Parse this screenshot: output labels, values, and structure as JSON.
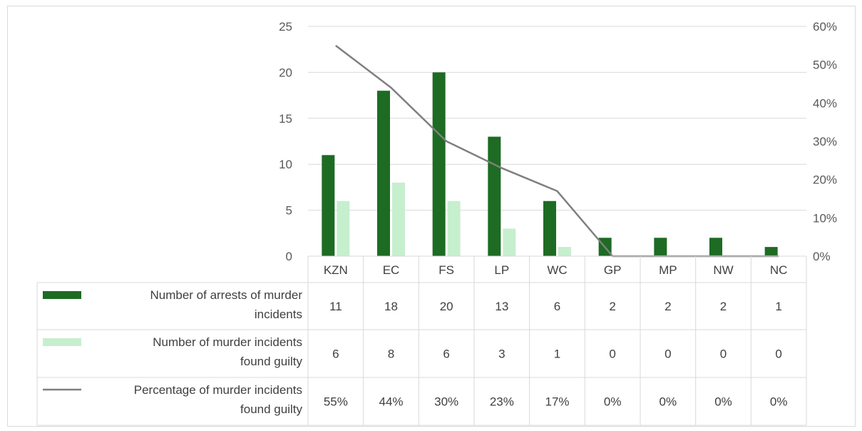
{
  "chart_data": {
    "type": "bar",
    "title": "",
    "xlabel": "",
    "ylabel": "",
    "categories": [
      "KZN",
      "EC",
      "FS",
      "LP",
      "WC",
      "GP",
      "MP",
      "NW",
      "NC"
    ],
    "ylim": [
      0,
      25
    ],
    "yticks": [
      "0",
      "5",
      "10",
      "15",
      "20",
      "25"
    ],
    "y2lim": [
      0,
      0.6
    ],
    "y2ticks": [
      "0%",
      "10%",
      "20%",
      "30%",
      "40%",
      "50%",
      "60%"
    ],
    "legend_placement": "data-table-left",
    "series": [
      {
        "name": "Number of arrests of murder incidents",
        "label_lines": [
          "Number of arrests of murder",
          "incidents"
        ],
        "type": "bar",
        "axis": "left",
        "color": "#1e6b24",
        "values": [
          11,
          18,
          20,
          13,
          6,
          2,
          2,
          2,
          1
        ],
        "table_values": [
          "11",
          "18",
          "20",
          "13",
          "6",
          "2",
          "2",
          "2",
          "1"
        ]
      },
      {
        "name": "Number of murder incidents found guilty",
        "label_lines": [
          "Number of murder incidents",
          "found guilty"
        ],
        "type": "bar",
        "axis": "left",
        "color": "#c6efce",
        "values": [
          6,
          8,
          6,
          3,
          1,
          0,
          0,
          0,
          0
        ],
        "table_values": [
          "6",
          "8",
          "6",
          "3",
          "1",
          "0",
          "0",
          "0",
          "0"
        ]
      },
      {
        "name": "Percentage of murder incidents found guilty",
        "label_lines": [
          "Percentage of murder incidents",
          "found guilty"
        ],
        "type": "line",
        "axis": "right",
        "color": "#7f7f7f",
        "values": [
          0.55,
          0.44,
          0.3,
          0.23,
          0.17,
          0,
          0,
          0,
          0
        ],
        "table_values": [
          "55%",
          "44%",
          "30%",
          "23%",
          "17%",
          "0%",
          "0%",
          "0%",
          "0%"
        ]
      }
    ]
  }
}
